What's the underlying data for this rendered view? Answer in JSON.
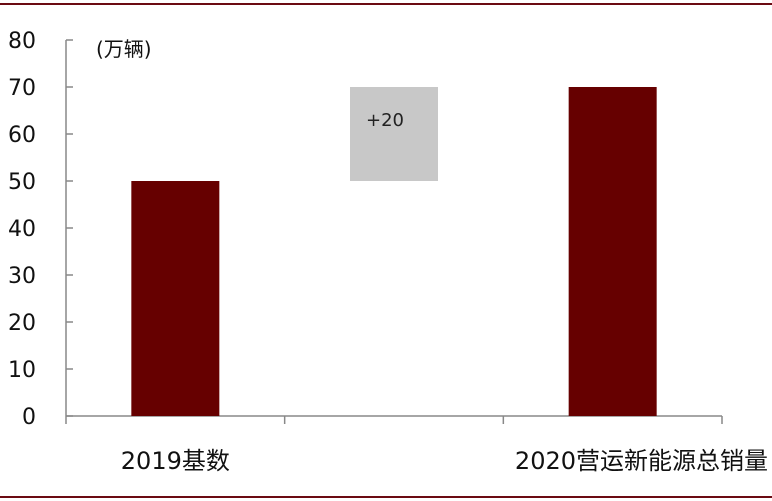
{
  "chart_data": {
    "type": "bar",
    "subtype": "waterfall",
    "unit_label": "(万辆)",
    "categories": [
      "2019基数",
      "",
      "2020营运新能源总销量"
    ],
    "bars": [
      {
        "label": "2019基数",
        "base": 0,
        "value": 50,
        "color": "#660000"
      },
      {
        "label": "",
        "base": 50,
        "value": 20,
        "color": "#c8c8c8",
        "annotation": "+20"
      },
      {
        "label": "2020营运新能源总销量",
        "base": 0,
        "value": 70,
        "color": "#660000"
      }
    ],
    "ylim": [
      0,
      80
    ],
    "yticks": [
      0,
      10,
      20,
      30,
      40,
      50,
      60,
      70,
      80
    ],
    "grid": false,
    "legend": "none"
  }
}
